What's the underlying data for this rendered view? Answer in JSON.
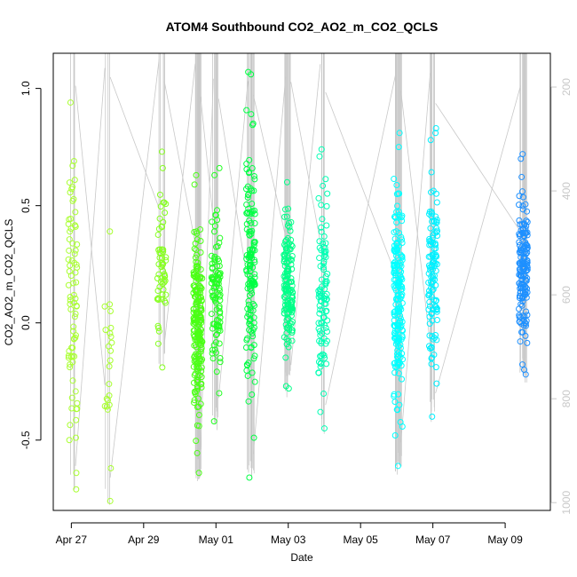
{
  "chart_data": {
    "type": "scatter",
    "title": "ATOM4 Southbound CO2_AO2_m_CO2_QCLS",
    "xlabel": "Date",
    "ylabel": "CO2_AO2_m_CO2_QCLS",
    "x_ticks": [
      "Apr 27",
      "Apr 29",
      "May 01",
      "May 03",
      "May 05",
      "May 07",
      "May 09"
    ],
    "y_ticks": [
      "-0.5",
      "0.0",
      "0.5",
      "1.0"
    ],
    "y2_ticks": [
      "200",
      "400",
      "600",
      "800",
      "1000"
    ],
    "xlim": [
      "2017-04-26T12:00",
      "2017-05-10T06:00"
    ],
    "ylim": [
      -0.8,
      1.15
    ],
    "y2lim": [
      1015,
      135
    ],
    "y2_axis": "secondary (right) axis for altitude/pressure profile lines, reversed scale",
    "point_color_scale": [
      "#9aff30",
      "#00ff00",
      "#00ffd0",
      "#00ffff",
      "#1e8cff"
    ],
    "line_color": "#c8c8c8",
    "grid": false,
    "clusters": [
      {
        "x": "2017-04-27T01:00",
        "color": "#aaff33",
        "y_min": -0.71,
        "y_max": 0.94,
        "n": 70,
        "extras": [
          0.94,
          0.69,
          0.67,
          0.52,
          -0.64,
          -0.71,
          -0.49,
          -0.5
        ]
      },
      {
        "x": "2017-04-28T00:00",
        "color": "#a8ff30",
        "y_min": -0.76,
        "y_max": 0.4,
        "n": 12,
        "extras": [
          0.39,
          0.07,
          0.05,
          -0.03,
          -0.16,
          -0.31,
          -0.33,
          -0.35,
          -0.37,
          -0.62,
          -0.76
        ]
      },
      {
        "x": "2017-04-29T12:00",
        "color": "#86ff20",
        "y_min": -0.19,
        "y_max": 0.73,
        "n": 55,
        "extras": [
          0.73,
          0.66,
          -0.19
        ]
      },
      {
        "x": "2017-04-30T12:00",
        "color": "#4bff15",
        "y_min": -0.64,
        "y_max": 0.63,
        "n": 200,
        "extras": [
          0.63,
          0.59,
          -0.44,
          -0.64,
          -0.28,
          -0.29
        ]
      },
      {
        "x": "2017-05-01T00:00",
        "color": "#22ff22",
        "y_min": -0.42,
        "y_max": 0.66,
        "n": 95,
        "extras": [
          0.66,
          0.63,
          -0.3,
          -0.42
        ]
      },
      {
        "x": "2017-05-01T23:00",
        "color": "#00ff44",
        "y_min": -0.66,
        "y_max": 1.07,
        "n": 140,
        "extras": [
          1.07,
          1.06,
          0.89,
          0.85,
          -0.49,
          -0.66
        ]
      },
      {
        "x": "2017-05-03T00:00",
        "color": "#00ff88",
        "y_min": -0.28,
        "y_max": 0.6,
        "n": 140,
        "extras": [
          0.6,
          -0.27,
          -0.28
        ]
      },
      {
        "x": "2017-05-03T23:00",
        "color": "#00ffb4",
        "y_min": -0.45,
        "y_max": 0.74,
        "n": 95,
        "extras": [
          0.74,
          0.71,
          -0.38,
          -0.45
        ]
      },
      {
        "x": "2017-05-06T01:00",
        "color": "#00ffff",
        "y_min": -0.61,
        "y_max": 0.81,
        "n": 185,
        "extras": [
          0.81,
          0.75,
          -0.35,
          -0.37,
          -0.48,
          -0.61
        ]
      },
      {
        "x": "2017-05-07T00:00",
        "color": "#00f0ff",
        "y_min": -0.4,
        "y_max": 0.83,
        "n": 115,
        "extras": [
          0.83,
          0.81,
          0.78,
          -0.4
        ]
      },
      {
        "x": "2017-05-09T12:00",
        "color": "#1e90ff",
        "y_min": -0.22,
        "y_max": 0.72,
        "n": 160,
        "extras": [
          0.72,
          0.7,
          -0.22,
          -0.2
        ]
      }
    ]
  }
}
